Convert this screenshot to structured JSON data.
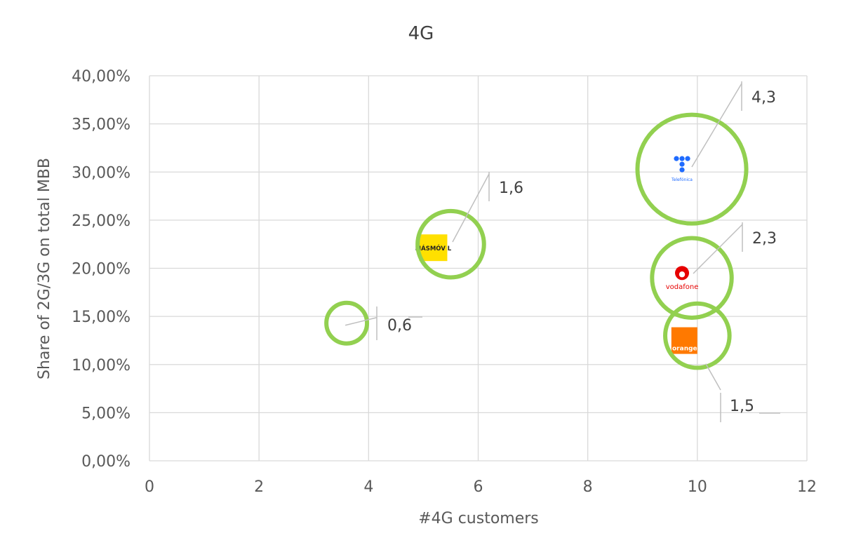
{
  "chart_data": {
    "type": "bubble",
    "title": "4G",
    "xlabel": "#4G customers",
    "ylabel": "Share of 2G/3G on total MBB",
    "xlim": [
      0,
      12
    ],
    "ylim": [
      0,
      0.4
    ],
    "x_ticks": [
      "0",
      "2",
      "4",
      "6",
      "8",
      "10",
      "12"
    ],
    "y_ticks": [
      "0,00%",
      "5,00%",
      "10,00%",
      "15,00%",
      "20,00%",
      "25,00%",
      "30,00%",
      "35,00%",
      "40,00%"
    ],
    "grid": true,
    "bubble_color": "#92d050",
    "points": [
      {
        "name": "MÁSMÓV L",
        "x": 5.5,
        "y": 0.225,
        "size": 1.6,
        "label": "1,6",
        "logo": "masmovil-logo"
      },
      {
        "name": "Telefónica",
        "x": 9.9,
        "y": 0.303,
        "size": 4.3,
        "label": "4,3",
        "logo": "telefonica-logo"
      },
      {
        "name": "vodafone",
        "x": 9.9,
        "y": 0.19,
        "size": 2.3,
        "label": "2,3",
        "logo": "vodafone-logo"
      },
      {
        "name": "orange",
        "x": 10.0,
        "y": 0.13,
        "size": 1.5,
        "label": "1,5",
        "logo": "orange-logo"
      },
      {
        "name": "",
        "x": 3.6,
        "y": 0.143,
        "size": 0.6,
        "label": "0,6",
        "logo": ""
      }
    ]
  }
}
